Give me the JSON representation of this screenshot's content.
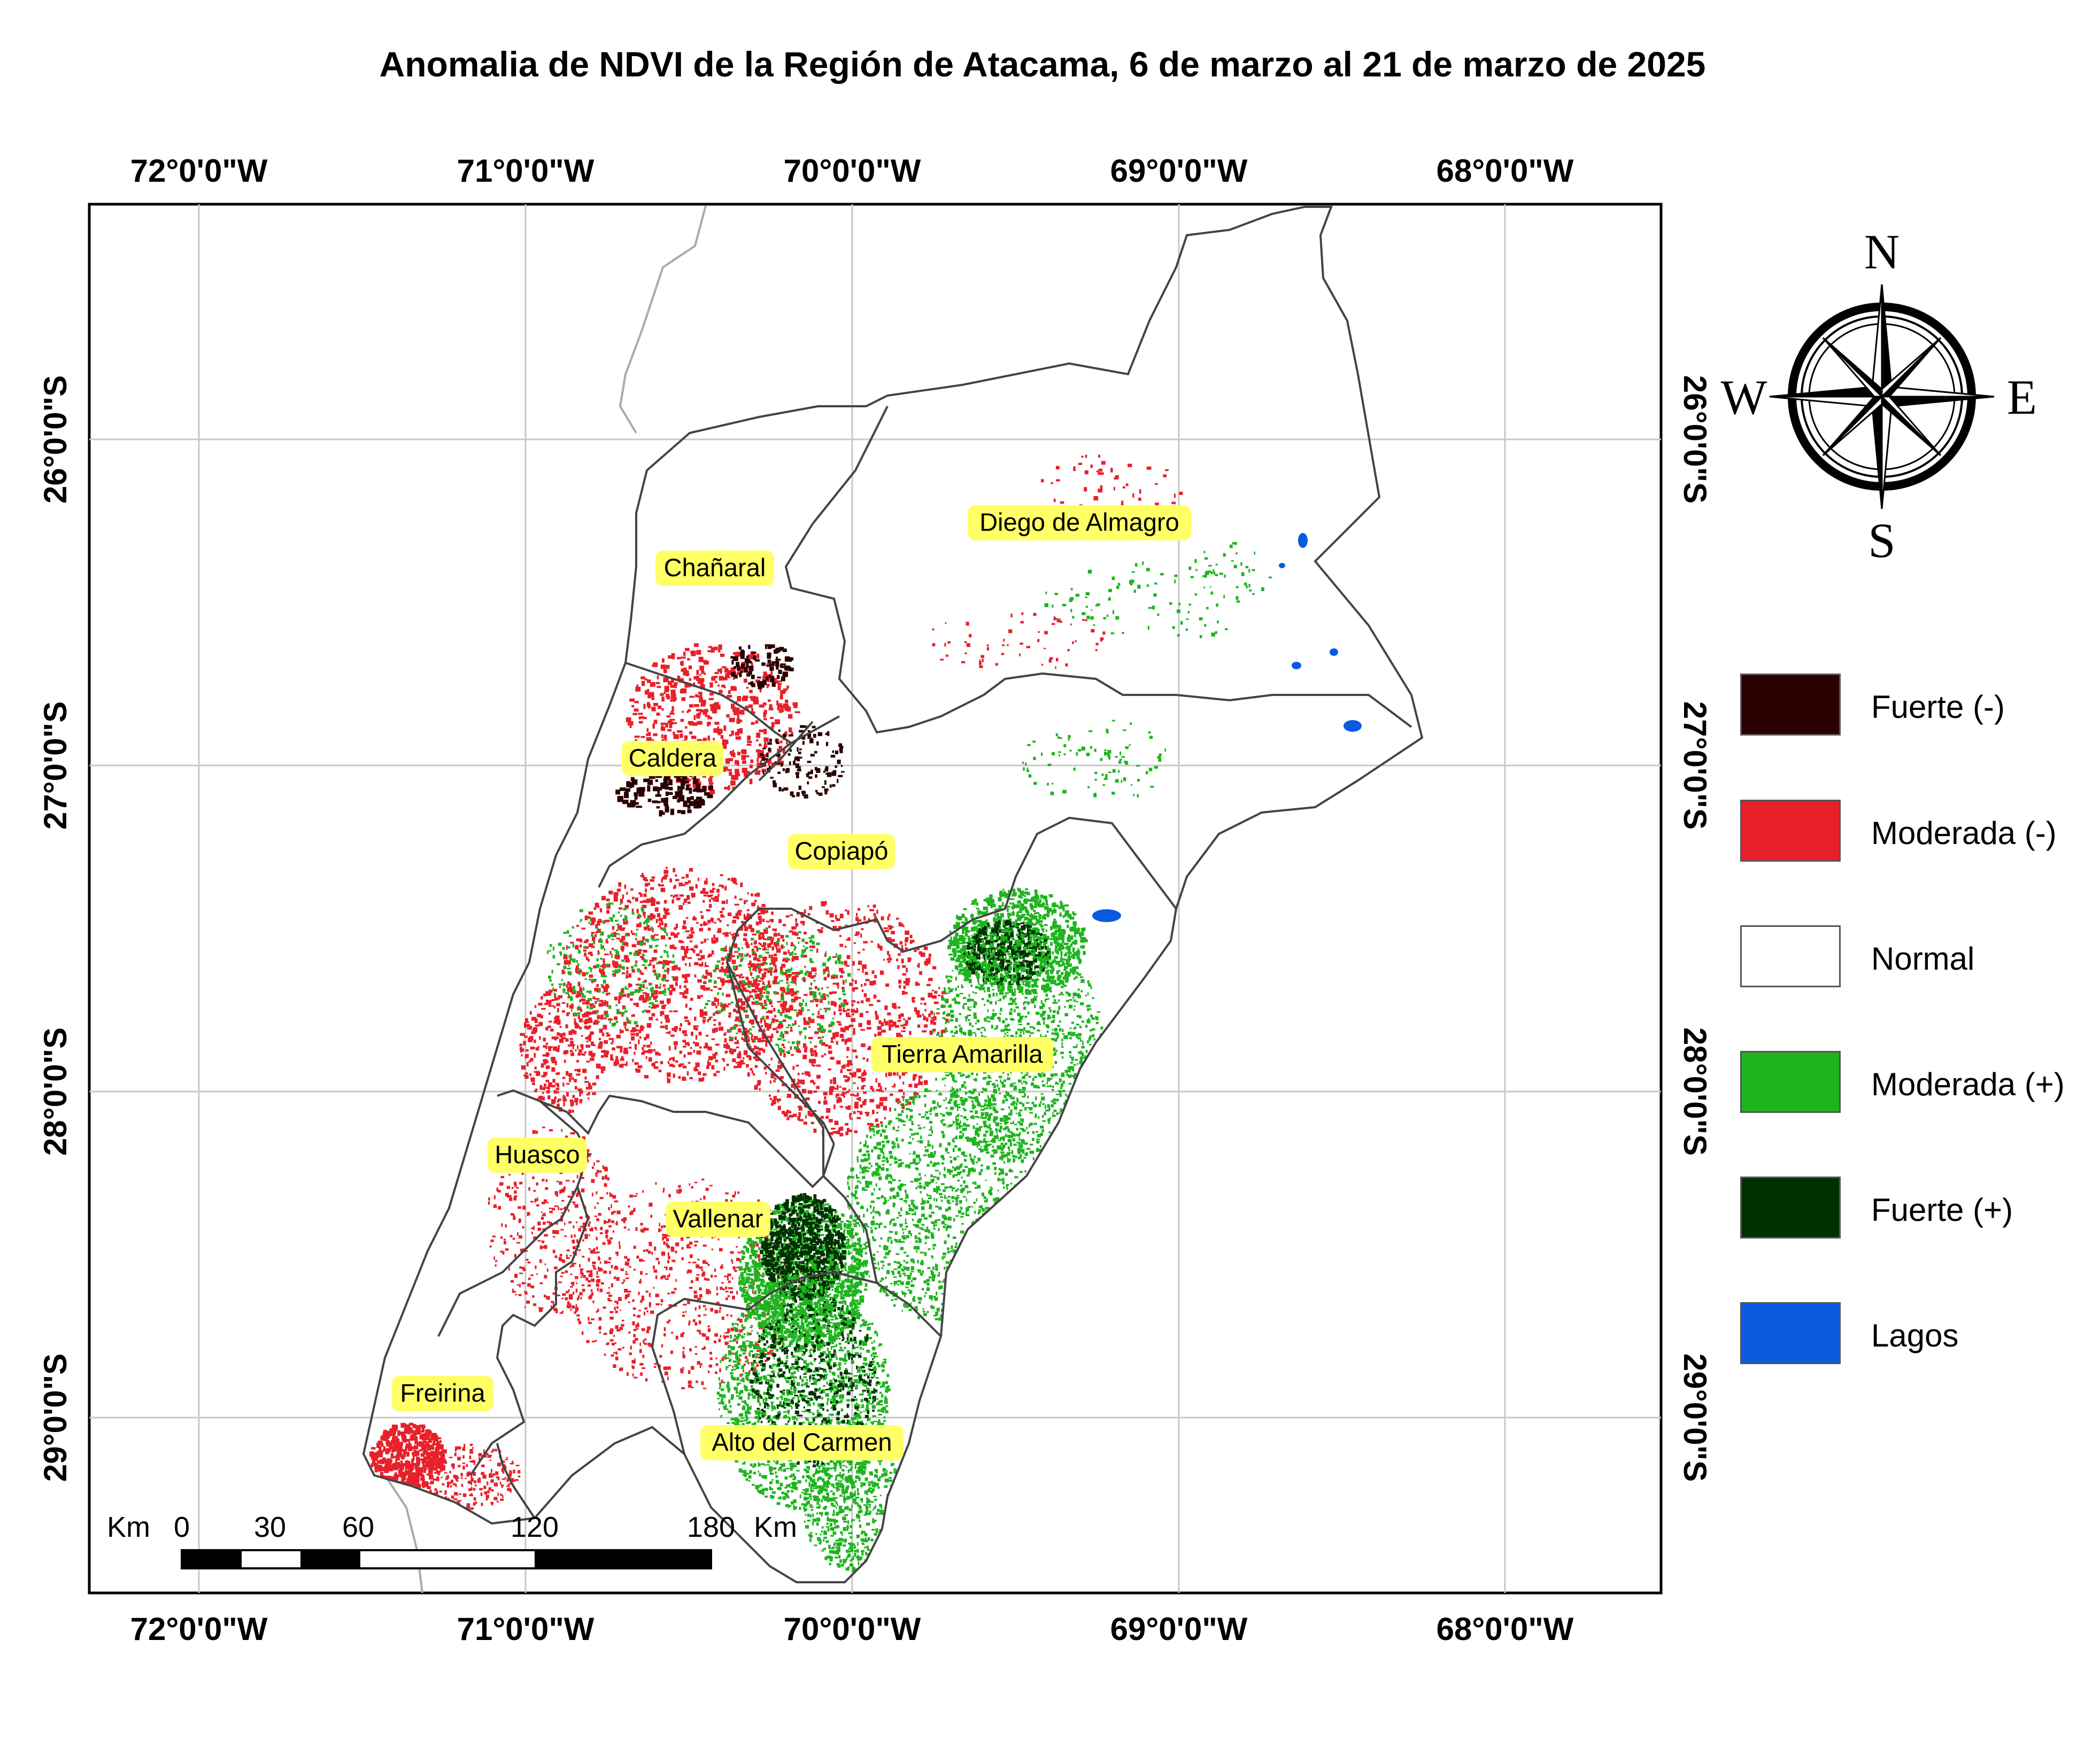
{
  "title": "Anomalia de NDVI de la Región de Atacama, 6 de marzo al 21 de marzo de 2025",
  "graticule": {
    "lon_labels": [
      "72°0'0\"W",
      "71°0'0\"W",
      "70°0'0\"W",
      "69°0'0\"W",
      "68°0'0\"W"
    ],
    "lat_labels": [
      "26°0'0\"S",
      "27°0'0\"S",
      "28°0'0\"S",
      "29°0'0\"S"
    ]
  },
  "communes": [
    {
      "name": "Diego de Almagro"
    },
    {
      "name": "Chañaral"
    },
    {
      "name": "Caldera"
    },
    {
      "name": "Copiapó"
    },
    {
      "name": "Tierra Amarilla"
    },
    {
      "name": "Huasco"
    },
    {
      "name": "Vallenar"
    },
    {
      "name": "Freirina"
    },
    {
      "name": "Alto del Carmen"
    }
  ],
  "scale_bar": {
    "unit_left": "Km",
    "ticks": [
      "0",
      "30",
      "60",
      "120",
      "180"
    ],
    "unit_right": "Km"
  },
  "north_arrow": {
    "n": "N",
    "s": "S",
    "e": "E",
    "w": "W"
  },
  "legend": [
    {
      "label": "Fuerte (-)",
      "color": "#2a0000"
    },
    {
      "label": "Moderada (-)",
      "color": "#e8202a"
    },
    {
      "label": "Normal",
      "color": "#ffffff"
    },
    {
      "label": "Moderada (+)",
      "color": "#1eb41e"
    },
    {
      "label": "Fuerte (+)",
      "color": "#003000"
    },
    {
      "label": "Lagos",
      "color": "#0a5ae0"
    }
  ],
  "colors": {
    "fuerte_neg": "#2a0000",
    "moderada_neg": "#e8202a",
    "moderada_pos": "#1eb41e",
    "fuerte_pos": "#003000",
    "lagos": "#0a5ae0",
    "boundary": "#444444",
    "graticule": "#c8c8c8"
  }
}
